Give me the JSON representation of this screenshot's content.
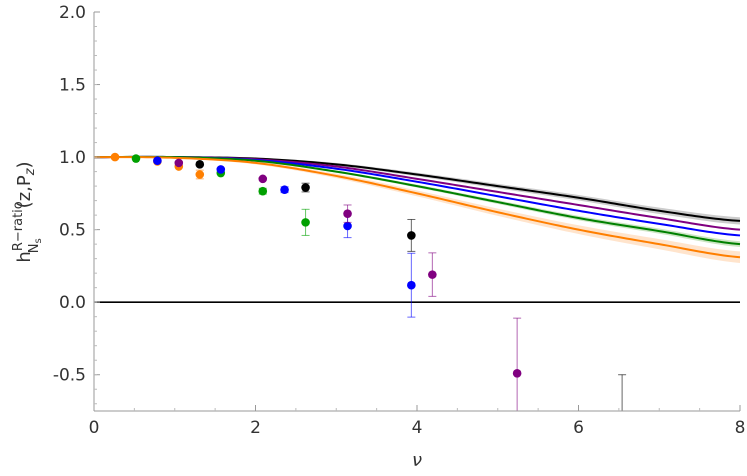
{
  "chart_data": {
    "type": "scatter",
    "xlabel": "ν",
    "ylabel": {
      "base": "h",
      "sup": "R−ratio",
      "sub": "N",
      "subsub": "s",
      "args": "(z,P",
      "args_sub": "z",
      "args_end": ")"
    },
    "xlim": [
      0,
      8
    ],
    "ylim": [
      -0.75,
      2.0
    ],
    "xticks": [
      0,
      2,
      4,
      6,
      8
    ],
    "yticks": [
      -0.5,
      0.0,
      0.5,
      1.0,
      1.5,
      2.0
    ],
    "xtick_labels": [
      "0",
      "2",
      "4",
      "6",
      "8"
    ],
    "ytick_labels": [
      "-0.5",
      "0.0",
      "0.5",
      "1.0",
      "1.5",
      "2.0"
    ],
    "grid": false,
    "curves": [
      {
        "color": "#000000",
        "band": "#999999",
        "x": [
          0,
          1,
          2,
          3,
          4,
          5,
          6,
          7,
          8
        ],
        "y": [
          1,
          1,
          0.99,
          0.95,
          0.88,
          0.8,
          0.72,
          0.63,
          0.56
        ],
        "err": 0.025
      },
      {
        "color": "#800080",
        "x": [
          0,
          1,
          2,
          3,
          4,
          5,
          6,
          7,
          8
        ],
        "y": [
          1,
          1,
          0.985,
          0.935,
          0.85,
          0.76,
          0.67,
          0.58,
          0.5
        ]
      },
      {
        "color": "#0000ff",
        "x": [
          0,
          1,
          2,
          3,
          4,
          5,
          6,
          7,
          8
        ],
        "y": [
          1,
          1,
          0.98,
          0.92,
          0.83,
          0.73,
          0.63,
          0.54,
          0.46
        ]
      },
      {
        "color": "#008000",
        "band": "#99cc88",
        "x": [
          0,
          1,
          2,
          3,
          4,
          5,
          6,
          7,
          8
        ],
        "y": [
          1,
          1,
          0.975,
          0.9,
          0.8,
          0.69,
          0.58,
          0.49,
          0.4
        ],
        "err": 0.02
      },
      {
        "color": "#ff7f00",
        "band": "#ffc999",
        "x": [
          0,
          1,
          2,
          3,
          4,
          5,
          6,
          7,
          8
        ],
        "y": [
          1,
          0.995,
          0.96,
          0.87,
          0.75,
          0.62,
          0.5,
          0.4,
          0.31
        ],
        "err": 0.04
      }
    ],
    "series": [
      {
        "color": "#ff7f00",
        "points": [
          [
            0.26,
            1.0,
            0.005
          ],
          [
            0.785,
            0.97,
            0.005
          ],
          [
            1.05,
            0.935,
            0.01
          ],
          [
            1.31,
            0.88,
            0.03
          ]
        ]
      },
      {
        "color": "#00a000",
        "points": [
          [
            0.52,
            0.99,
            0.005
          ],
          [
            1.57,
            0.89,
            0.01
          ],
          [
            2.09,
            0.765,
            0.02
          ],
          [
            2.62,
            0.55,
            0.09
          ]
        ]
      },
      {
        "color": "#0000ff",
        "points": [
          [
            0.785,
            0.975,
            0.005
          ],
          [
            1.57,
            0.915,
            0.01
          ],
          [
            2.36,
            0.775,
            0.02
          ],
          [
            3.14,
            0.525,
            0.08
          ],
          [
            3.93,
            0.117,
            0.22
          ]
        ]
      },
      {
        "color": "#800080",
        "points": [
          [
            1.05,
            0.96,
            0.005
          ],
          [
            2.09,
            0.85,
            0.01
          ],
          [
            3.14,
            0.61,
            0.06
          ],
          [
            4.19,
            0.19,
            0.15
          ],
          [
            5.24,
            -0.49,
            0.38
          ]
        ]
      },
      {
        "color": "#000000",
        "points": [
          [
            1.31,
            0.95,
            0.01
          ],
          [
            2.62,
            0.79,
            0.03
          ],
          [
            3.93,
            0.46,
            0.11
          ],
          [
            6.54,
            -0.9,
            0.4
          ]
        ]
      }
    ]
  }
}
